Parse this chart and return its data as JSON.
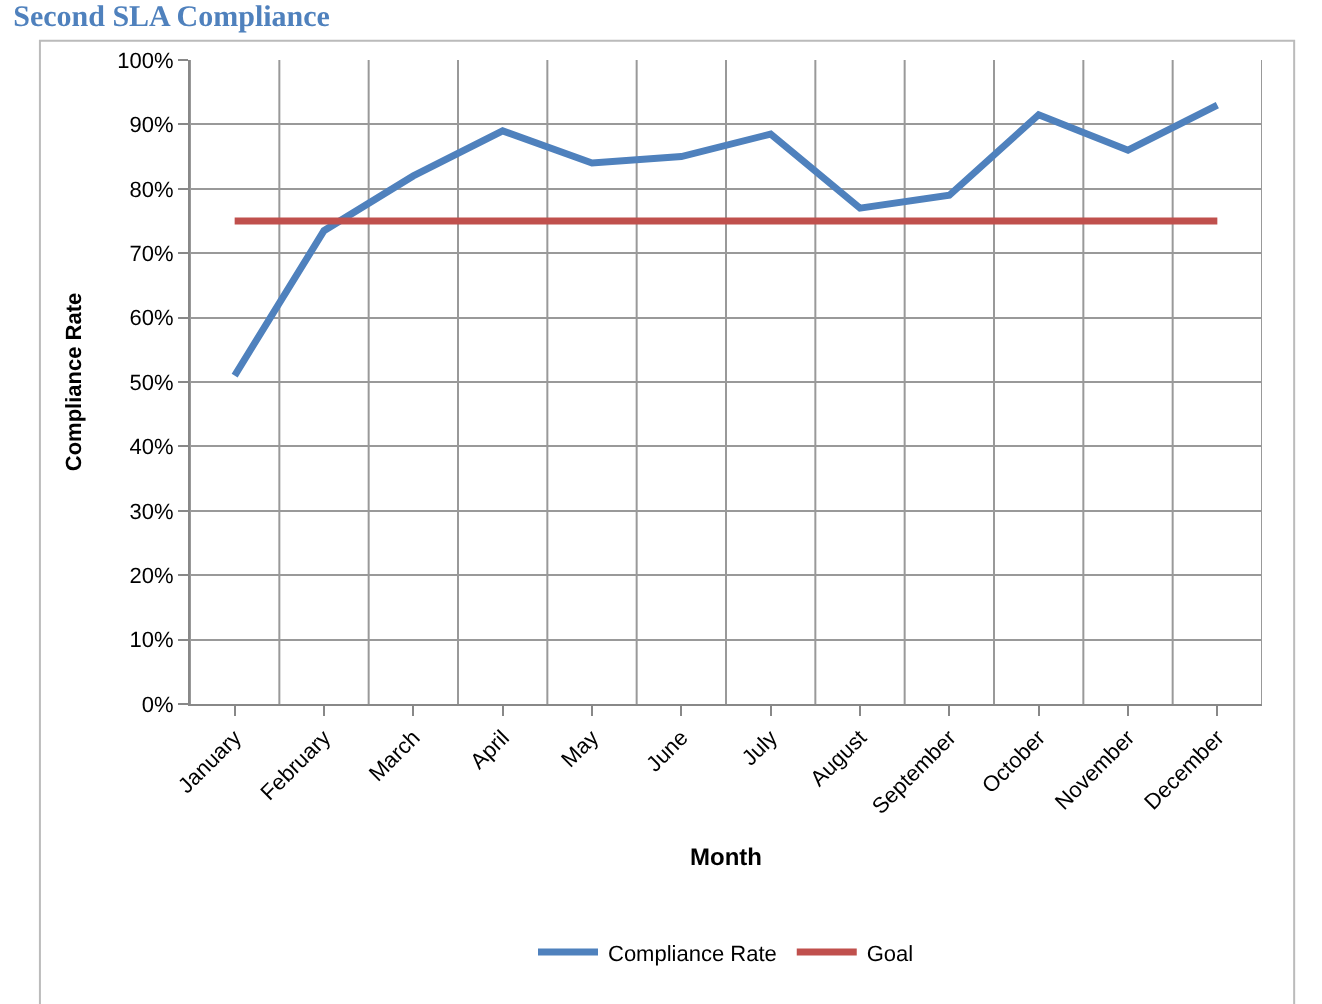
{
  "chart_data": {
    "type": "line",
    "title": "Second SLA Compliance",
    "xlabel": "Month",
    "ylabel": "Compliance Rate",
    "categories": [
      "January",
      "February",
      "March",
      "April",
      "May",
      "June",
      "July",
      "August",
      "September",
      "October",
      "November",
      "December"
    ],
    "series": [
      {
        "name": "Compliance Rate",
        "color": "#4f81bd",
        "values": [
          51,
          73.5,
          82,
          89,
          84,
          85,
          88.5,
          77,
          79,
          91.5,
          86,
          93
        ]
      },
      {
        "name": "Goal",
        "color": "#c0504d",
        "values": [
          75,
          75,
          75,
          75,
          75,
          75,
          75,
          75,
          75,
          75,
          75,
          75
        ]
      }
    ],
    "ylim": [
      0,
      100
    ],
    "yticks": [
      {
        "value": 0,
        "label": "0%"
      },
      {
        "value": 10,
        "label": "10%"
      },
      {
        "value": 20,
        "label": "20%"
      },
      {
        "value": 30,
        "label": "30%"
      },
      {
        "value": 40,
        "label": "40%"
      },
      {
        "value": 50,
        "label": "50%"
      },
      {
        "value": 60,
        "label": "60%"
      },
      {
        "value": 70,
        "label": "70%"
      },
      {
        "value": 80,
        "label": "80%"
      },
      {
        "value": 90,
        "label": "90%"
      },
      {
        "value": 100,
        "label": "100%"
      }
    ],
    "grid": true,
    "legend": "bottom",
    "marker": "none",
    "line_style": "solid"
  }
}
